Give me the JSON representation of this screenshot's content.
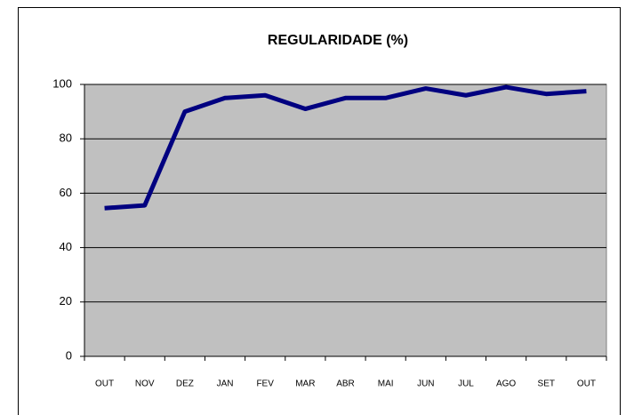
{
  "chart_data": {
    "type": "line",
    "title": "REGULARIDADE (%)",
    "categories": [
      "OUT",
      "NOV",
      "DEZ",
      "JAN",
      "FEV",
      "MAR",
      "ABR",
      "MAI",
      "JUN",
      "JUL",
      "AGO",
      "SET",
      "OUT"
    ],
    "series": [
      {
        "name": "REGULARIDADE",
        "color": "#000080",
        "values": [
          54.5,
          55.5,
          90,
          95,
          96,
          91,
          95,
          95,
          98.5,
          96,
          99,
          96.5,
          97.5
        ]
      }
    ],
    "ylim": [
      0,
      100
    ],
    "yticks": [
      0,
      20,
      40,
      60,
      80,
      100
    ],
    "grid": true,
    "legend": false
  }
}
